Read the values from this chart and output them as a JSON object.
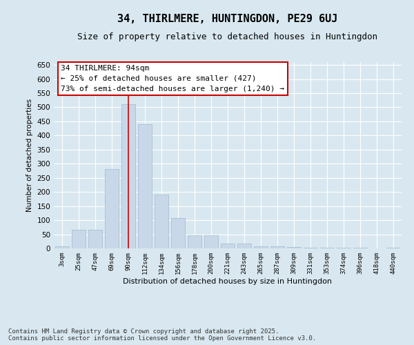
{
  "title1": "34, THIRLMERE, HUNTINGDON, PE29 6UJ",
  "title2": "Size of property relative to detached houses in Huntingdon",
  "xlabel": "Distribution of detached houses by size in Huntingdon",
  "ylabel": "Number of detached properties",
  "categories": [
    "3sqm",
    "25sqm",
    "47sqm",
    "69sqm",
    "90sqm",
    "112sqm",
    "134sqm",
    "156sqm",
    "178sqm",
    "200sqm",
    "221sqm",
    "243sqm",
    "265sqm",
    "287sqm",
    "309sqm",
    "331sqm",
    "353sqm",
    "374sqm",
    "396sqm",
    "418sqm",
    "440sqm"
  ],
  "values": [
    8,
    65,
    65,
    280,
    510,
    440,
    190,
    108,
    46,
    46,
    18,
    18,
    8,
    8,
    5,
    3,
    3,
    2,
    2,
    1,
    3
  ],
  "bar_color": "#c8d8e8",
  "bar_edge_color": "#a0b8d0",
  "highlight_bar_index": 4,
  "highlight_line_color": "#cc0000",
  "ylim": [
    0,
    660
  ],
  "yticks": [
    0,
    50,
    100,
    150,
    200,
    250,
    300,
    350,
    400,
    450,
    500,
    550,
    600,
    650
  ],
  "background_color": "#d9e8f0",
  "plot_bg_color": "#d9e8f0",
  "annotation_line1": "34 THIRLMERE: 94sqm",
  "annotation_line2": "← 25% of detached houses are smaller (427)",
  "annotation_line3": "73% of semi-detached houses are larger (1,240) →",
  "annotation_box_color": "#ffffff",
  "annotation_box_edge_color": "#cc0000",
  "footer_text": "Contains HM Land Registry data © Crown copyright and database right 2025.\nContains public sector information licensed under the Open Government Licence v3.0.",
  "title1_fontsize": 11,
  "title2_fontsize": 9,
  "annotation_fontsize": 8,
  "footer_fontsize": 6.5
}
